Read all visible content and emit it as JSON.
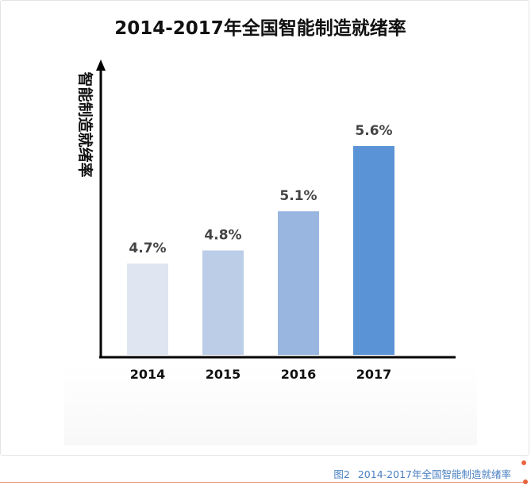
{
  "chart_data": {
    "type": "bar",
    "title": "2014-2017年全国智能制造就绪率",
    "ylabel": "智能制造就绪率",
    "xlabel": "",
    "categories": [
      "2014",
      "2015",
      "2016",
      "2017"
    ],
    "values": [
      4.7,
      4.8,
      5.1,
      5.6
    ],
    "value_labels": [
      "4.7%",
      "4.8%",
      "5.1%",
      "5.6%"
    ],
    "unit": "%",
    "bar_colors": [
      "#dfe6f2",
      "#bccde7",
      "#98b6e0",
      "#5b94d6"
    ],
    "grid": false,
    "legend": "none"
  },
  "caption": {
    "figure_label": "图2",
    "text": "2014-2017年全国智能制造就绪率"
  },
  "colors": {
    "axis": "#000000",
    "text": "#222222",
    "value_label": "#444444",
    "caption": "#4a7fc0",
    "accent_rule": "#f08a74"
  }
}
